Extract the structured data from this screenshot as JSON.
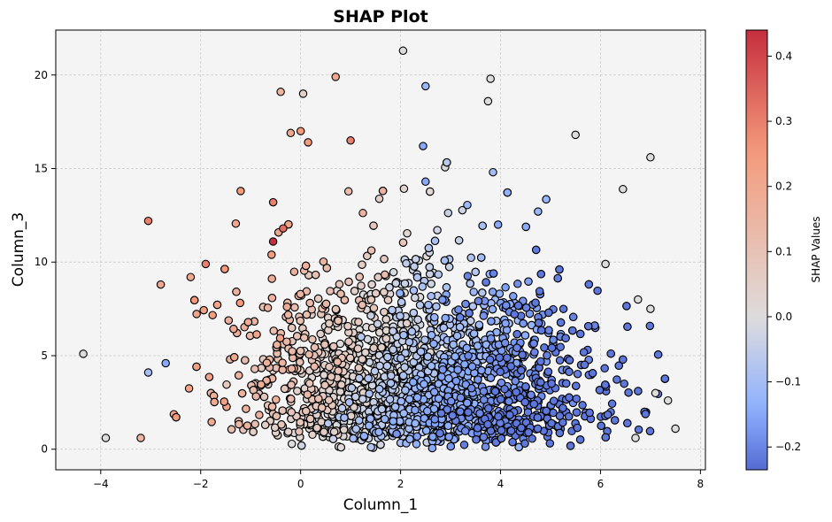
{
  "chart_data": {
    "type": "scatter",
    "title": "SHAP Plot",
    "xlabel": "Column_1",
    "ylabel": "Column_3",
    "xlim": [
      -4.9,
      8.1
    ],
    "ylim": [
      -1.1,
      22.4
    ],
    "xticks": [
      -4,
      -2,
      0,
      2,
      4,
      6,
      8
    ],
    "yticks": [
      0,
      5,
      10,
      15,
      20
    ],
    "grid": true,
    "background": "#f4f4f4",
    "marker_edge_color": "#000000",
    "colormap": "coolwarm",
    "colorbar": {
      "label": "SHAP Values",
      "range": [
        -0.235,
        0.44
      ],
      "ticks": [
        -0.2,
        -0.1,
        0.0,
        0.1,
        0.2,
        0.3,
        0.4
      ],
      "tick_labels": [
        "−0.2",
        "−0.1",
        "0.0",
        "0.1",
        "0.2",
        "0.3",
        "0.4"
      ]
    },
    "highlighted_points": [
      {
        "x": -4.35,
        "y": 5.1,
        "shap": 0.0
      },
      {
        "x": -3.9,
        "y": 0.6,
        "shap": 0.0
      },
      {
        "x": -3.2,
        "y": 0.6,
        "shap": 0.15
      },
      {
        "x": -3.05,
        "y": 12.2,
        "shap": 0.3
      },
      {
        "x": -3.05,
        "y": 4.1,
        "shap": -0.1
      },
      {
        "x": -2.7,
        "y": 4.6,
        "shap": -0.15
      },
      {
        "x": -2.8,
        "y": 8.8,
        "shap": 0.2
      },
      {
        "x": -2.2,
        "y": 9.2,
        "shap": 0.2
      },
      {
        "x": -1.9,
        "y": 9.9,
        "shap": 0.3
      },
      {
        "x": -1.2,
        "y": 13.8,
        "shap": 0.25
      },
      {
        "x": -0.55,
        "y": 13.2,
        "shap": 0.3
      },
      {
        "x": -0.55,
        "y": 11.1,
        "shap": 0.44
      },
      {
        "x": -0.35,
        "y": 11.8,
        "shap": 0.33
      },
      {
        "x": -0.4,
        "y": 19.1,
        "shap": 0.15
      },
      {
        "x": 0.05,
        "y": 19.0,
        "shap": 0.05
      },
      {
        "x": 0.7,
        "y": 19.9,
        "shap": 0.2
      },
      {
        "x": -0.2,
        "y": 16.9,
        "shap": 0.2
      },
      {
        "x": 0.0,
        "y": 17.0,
        "shap": 0.25
      },
      {
        "x": 0.15,
        "y": 16.4,
        "shap": 0.25
      },
      {
        "x": 1.0,
        "y": 16.5,
        "shap": 0.3
      },
      {
        "x": 2.05,
        "y": 21.3,
        "shap": 0.0
      },
      {
        "x": 2.5,
        "y": 19.4,
        "shap": -0.12
      },
      {
        "x": 3.8,
        "y": 19.8,
        "shap": 0.0
      },
      {
        "x": 3.75,
        "y": 18.6,
        "shap": 0.0
      },
      {
        "x": 2.45,
        "y": 16.2,
        "shap": -0.15
      },
      {
        "x": 2.5,
        "y": 14.3,
        "shap": -0.15
      },
      {
        "x": 3.85,
        "y": 14.8,
        "shap": -0.1
      },
      {
        "x": 3.95,
        "y": 12.0,
        "shap": -0.15
      },
      {
        "x": 4.75,
        "y": 12.7,
        "shap": -0.12
      },
      {
        "x": 5.5,
        "y": 16.8,
        "shap": 0.0
      },
      {
        "x": 6.45,
        "y": 13.9,
        "shap": 0.0
      },
      {
        "x": 7.0,
        "y": 15.6,
        "shap": 0.0
      },
      {
        "x": 6.1,
        "y": 9.9,
        "shap": 0.0
      },
      {
        "x": 6.75,
        "y": 8.0,
        "shap": 0.0
      },
      {
        "x": 7.0,
        "y": 7.5,
        "shap": 0.0
      },
      {
        "x": 7.35,
        "y": 2.6,
        "shap": 0.0
      },
      {
        "x": 7.5,
        "y": 1.1,
        "shap": 0.0
      },
      {
        "x": 6.7,
        "y": 0.6,
        "shap": 0.0
      },
      {
        "x": 7.1,
        "y": 3.0,
        "shap": 0.0
      }
    ]
  }
}
